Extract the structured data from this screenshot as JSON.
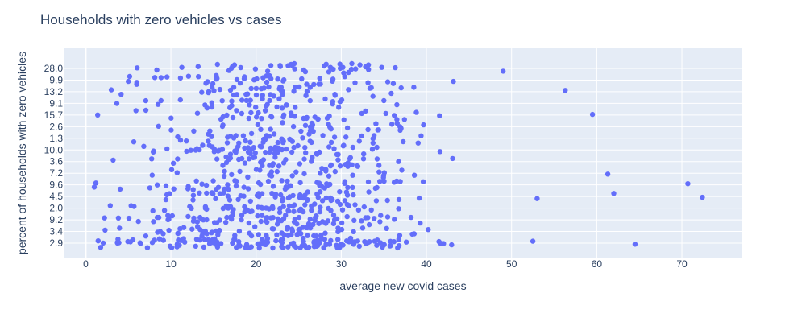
{
  "chart_data": {
    "type": "scatter",
    "title": "Households with zero vehicles vs cases",
    "xlabel": "average new covid cases",
    "ylabel": "percent of households with zero vehicles",
    "xlim": [
      -2.5,
      77
    ],
    "x_ticks": [
      0,
      10,
      20,
      30,
      40,
      50,
      60,
      70
    ],
    "y_categories": [
      "2.9",
      "3.4",
      "9.2",
      "2.0",
      "4.5",
      "9.6",
      "7.2",
      "3.6",
      "10.0",
      "1.3",
      "2.6",
      "15.7",
      "9.1",
      "13.2",
      "9.9",
      "28.0"
    ],
    "y_axis_type": "category",
    "grid": true,
    "marker_color": "#636efa",
    "plot_bgcolor": "#e5ecf6",
    "point_count": 900,
    "sample_points": [
      {
        "x": 1.0,
        "y": "9.6"
      },
      {
        "x": 1.4,
        "y": "15.7"
      },
      {
        "x": 2.2,
        "y": "9.2"
      },
      {
        "x": 3.0,
        "y": "13.2"
      },
      {
        "x": 5.0,
        "y": "9.9"
      },
      {
        "x": 6.0,
        "y": "9.9"
      },
      {
        "x": 49.0,
        "y": "28.0"
      },
      {
        "x": 56.3,
        "y": "13.2"
      },
      {
        "x": 59.5,
        "y": "15.7"
      },
      {
        "x": 61.3,
        "y": "7.2"
      },
      {
        "x": 62.0,
        "y": "4.5"
      },
      {
        "x": 64.5,
        "y": "2.9"
      },
      {
        "x": 70.7,
        "y": "9.6"
      },
      {
        "x": 72.4,
        "y": "4.5"
      },
      {
        "x": 53.0,
        "y": "4.5"
      },
      {
        "x": 52.5,
        "y": "2.9"
      }
    ]
  }
}
